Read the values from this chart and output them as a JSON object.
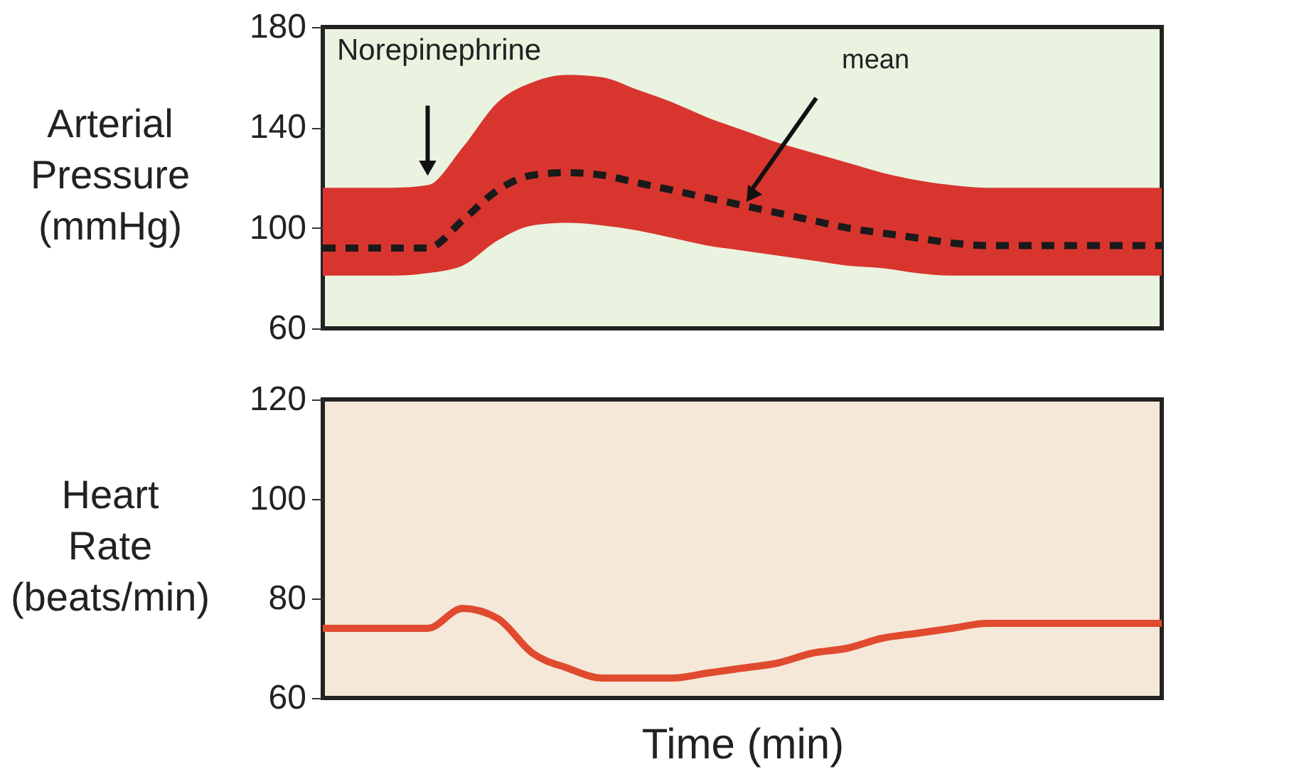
{
  "chart_data": [
    {
      "type": "line",
      "ylabel": "Arterial Pressure (mmHg)",
      "categories": [
        null,
        null,
        null,
        null,
        null,
        null,
        null,
        null,
        null,
        null,
        null,
        null,
        null,
        null,
        null,
        null,
        null,
        null,
        null,
        null,
        null,
        null,
        null,
        null,
        null
      ],
      "ylim": [
        60,
        180
      ],
      "yticks": [
        60,
        100,
        140,
        180
      ],
      "tick_labels": "y",
      "annotations": [
        "Norepinephrine",
        "mean"
      ],
      "series": [
        {
          "color": "#1a1a1a",
          "line_style": "dashed",
          "values": [
            92,
            92,
            92,
            92,
            103,
            115,
            121,
            122,
            121,
            118,
            115,
            112,
            109,
            106,
            103,
            100,
            98,
            96,
            94,
            93,
            93,
            93,
            93,
            93,
            93
          ],
          "lower": [
            81,
            81,
            81,
            82,
            85,
            95,
            101,
            102,
            101,
            99,
            96,
            93,
            91,
            89,
            87,
            85,
            84,
            82,
            81,
            81,
            81,
            81,
            81,
            81,
            81
          ],
          "upper": [
            116,
            116,
            116,
            117,
            132,
            150,
            158,
            161,
            160,
            155,
            150,
            144,
            139,
            134,
            130,
            126,
            122,
            119,
            117,
            116,
            116,
            116,
            116,
            116,
            116
          ]
        }
      ]
    },
    {
      "type": "line",
      "ylabel": "Heart Rate (beats/min)",
      "xlabel": "Time (min)",
      "categories": [
        null,
        null,
        null,
        null,
        null,
        null,
        null,
        null,
        null,
        null,
        null,
        null,
        null,
        null,
        null,
        null,
        null,
        null,
        null,
        null,
        null,
        null,
        null,
        null,
        null
      ],
      "ylim": [
        60,
        120
      ],
      "yticks": [
        60,
        80,
        100,
        120
      ],
      "tick_labels": "y",
      "series": [
        {
          "color": "#e04a2e",
          "values": [
            74,
            74,
            74,
            74,
            78,
            76,
            69,
            66,
            64,
            64,
            64,
            65,
            66,
            67,
            69,
            70,
            72,
            73,
            74,
            75,
            75,
            75,
            75,
            75,
            75
          ]
        }
      ]
    }
  ]
}
